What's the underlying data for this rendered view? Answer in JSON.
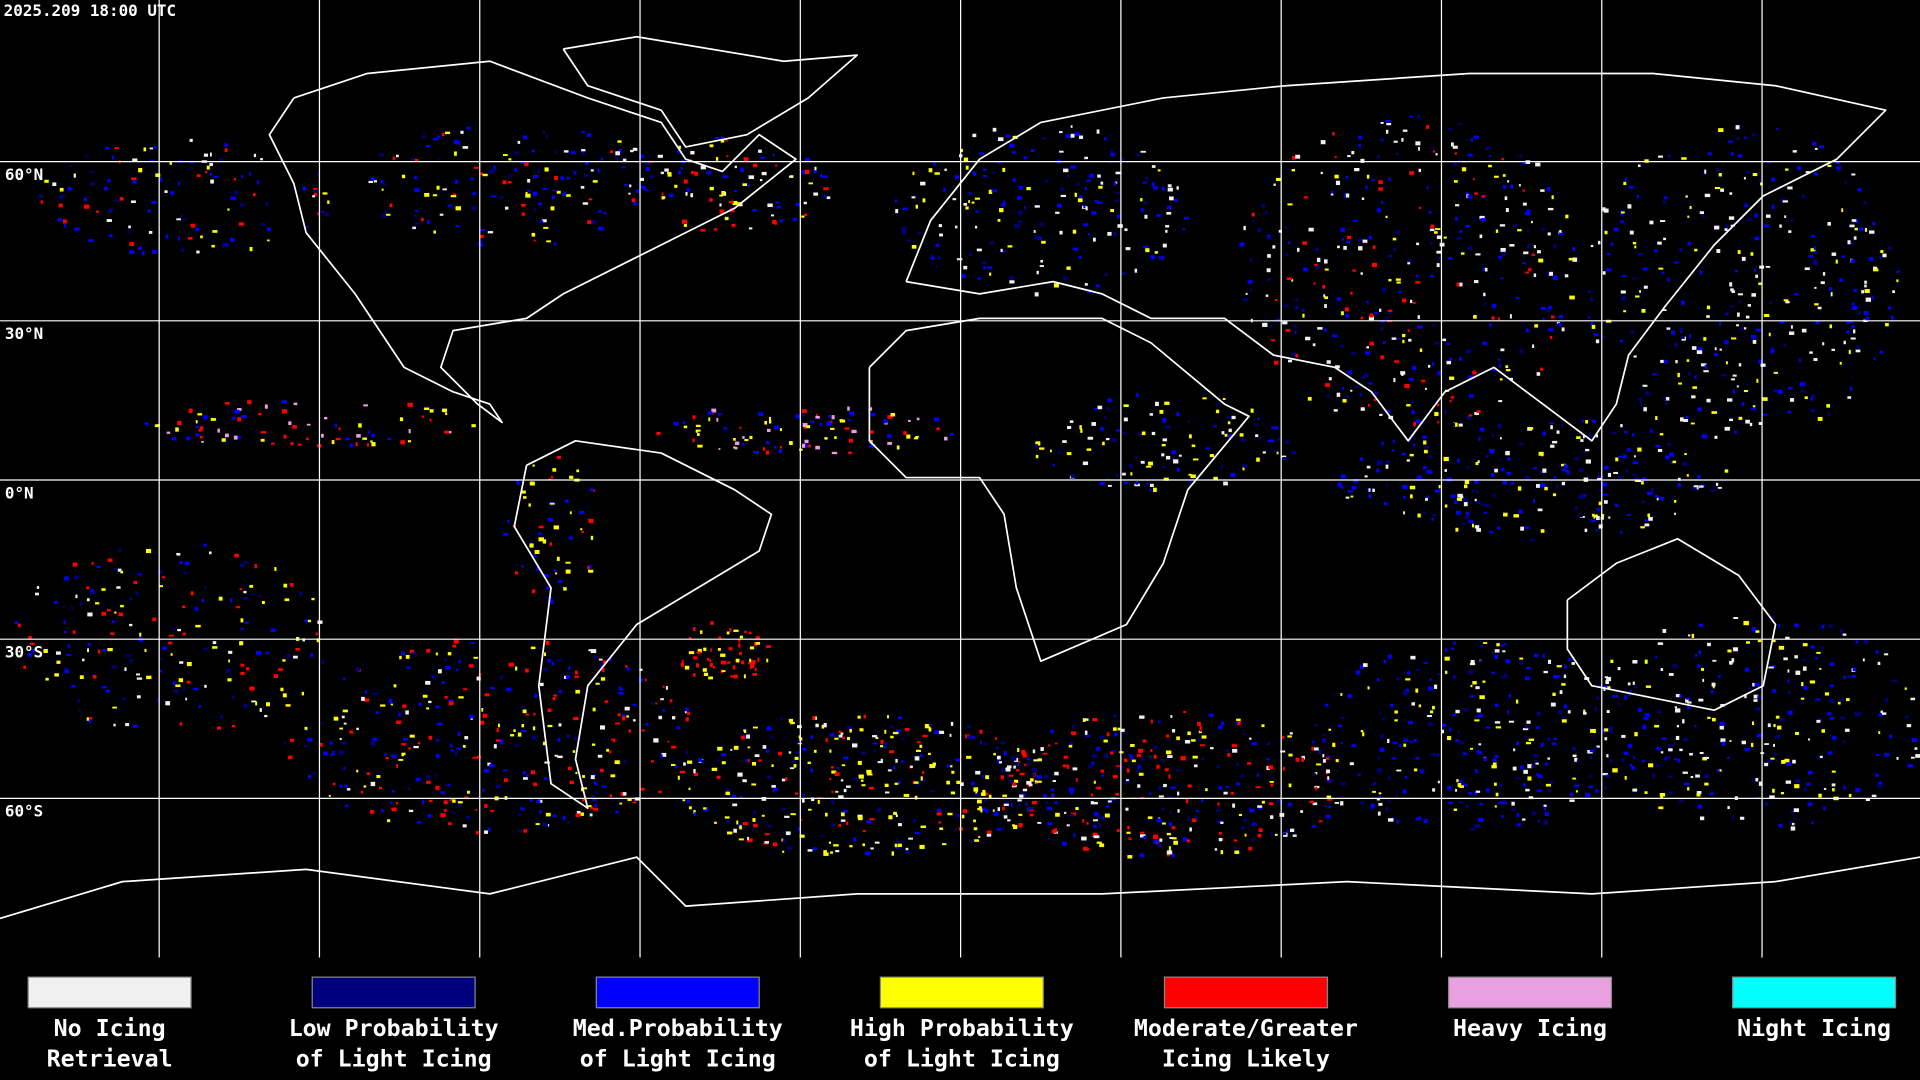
{
  "timestamp": "2025.209 18:00 UTC",
  "latitude_labels": [
    "60°N",
    "30°N",
    "0°N",
    "30°S",
    "60°S"
  ],
  "legend": [
    {
      "color": "#f0f0f0",
      "label": [
        "No Icing",
        "Retrieval"
      ]
    },
    {
      "color": "#00007f",
      "label": [
        "Low Probability",
        "of Light Icing"
      ]
    },
    {
      "color": "#0000ff",
      "label": [
        "Med.Probability",
        "of Light Icing"
      ]
    },
    {
      "color": "#ffff00",
      "label": [
        "High Probability",
        "of Light Icing"
      ]
    },
    {
      "color": "#ff0000",
      "label": [
        "Moderate/Greater",
        "Icing Likely"
      ]
    },
    {
      "color": "#e8a0e0",
      "label": [
        "Heavy Icing"
      ]
    },
    {
      "color": "#00ffff",
      "label": [
        "Night Icing"
      ]
    }
  ]
}
